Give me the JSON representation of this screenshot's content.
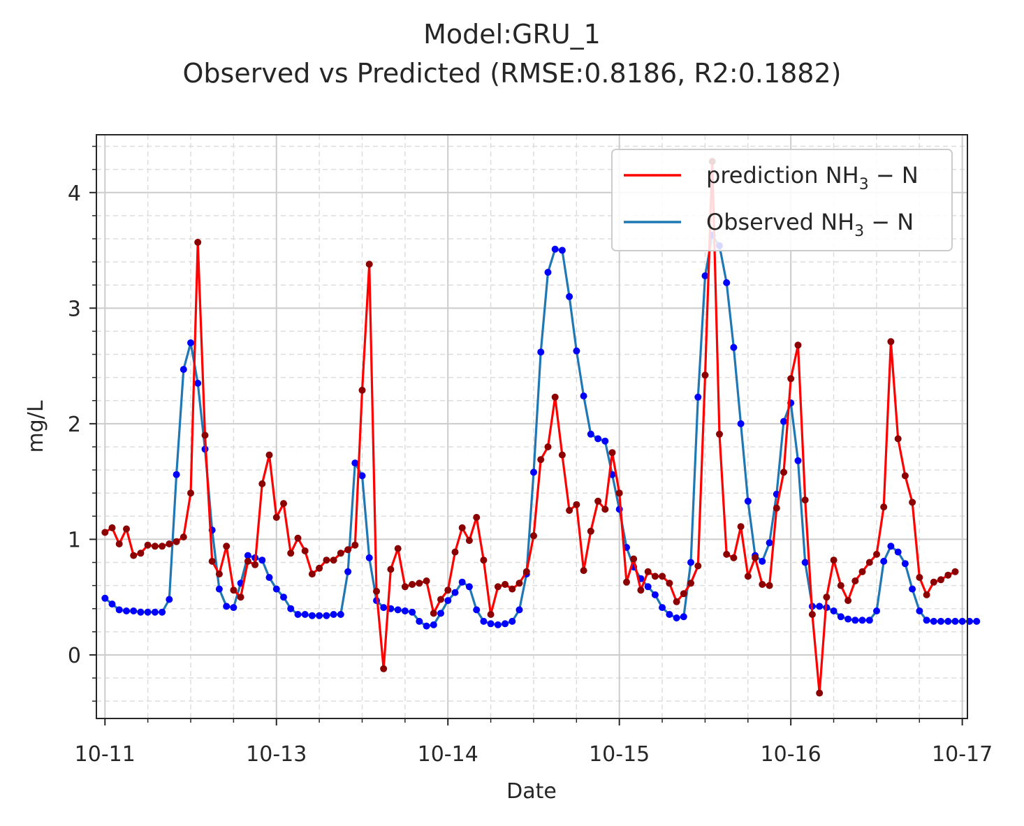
{
  "chart_data": {
    "type": "line",
    "title": "Model:GRU_1",
    "subtitle": "Observed vs Predicted (RMSE:0.8186, R2:0.1882)",
    "xlabel": "Date",
    "ylabel": "mg/L",
    "xlim": [
      -0.05,
      5.03
    ],
    "ylim": [
      -0.55,
      4.5
    ],
    "x_ticks": [
      {
        "value": 0,
        "label": "10-11"
      },
      {
        "value": 1,
        "label": "10-13"
      },
      {
        "value": 2,
        "label": "10-14"
      },
      {
        "value": 3,
        "label": "10-15"
      },
      {
        "value": 4,
        "label": "10-16"
      },
      {
        "value": 5,
        "label": "10-17"
      }
    ],
    "y_ticks": [
      0,
      1,
      2,
      3,
      4
    ],
    "grid": true,
    "legend_position": "top-right",
    "colors": {
      "prediction_line": "#ff0000",
      "prediction_marker": "#8b0000",
      "observed_line": "#1f77b4",
      "observed_marker": "#0000ff"
    },
    "step": 0.04167,
    "series": [
      {
        "name": "prediction",
        "label_main": "prediction NH",
        "label_sub": "3",
        "label_tail": " − N",
        "values": [
          1.06,
          1.1,
          0.96,
          1.09,
          0.86,
          0.88,
          0.95,
          0.94,
          0.94,
          0.96,
          0.98,
          1.02,
          1.4,
          3.57,
          1.9,
          0.81,
          0.7,
          0.94,
          0.56,
          0.5,
          0.81,
          0.78,
          1.48,
          1.73,
          1.19,
          1.31,
          0.88,
          1.01,
          0.9,
          0.7,
          0.75,
          0.82,
          0.82,
          0.88,
          0.91,
          0.95,
          2.29,
          3.38,
          0.55,
          -0.12,
          0.74,
          0.92,
          0.59,
          0.61,
          0.62,
          0.64,
          0.36,
          0.48,
          0.56,
          0.89,
          1.1,
          0.99,
          1.19,
          0.82,
          0.35,
          0.59,
          0.61,
          0.57,
          0.62,
          0.72,
          1.03,
          1.69,
          1.8,
          2.23,
          1.73,
          1.25,
          1.3,
          0.73,
          1.07,
          1.33,
          1.26,
          1.75,
          1.4,
          0.63,
          0.83,
          0.56,
          0.72,
          0.68,
          0.68,
          0.62,
          0.46,
          0.53,
          0.62,
          0.77,
          2.42,
          4.27,
          1.91,
          0.87,
          0.84,
          1.11,
          0.68,
          0.84,
          0.61,
          0.6,
          1.27,
          1.58,
          2.39,
          2.68,
          1.34,
          0.35,
          -0.33,
          0.5,
          0.82,
          0.6,
          0.47,
          0.64,
          0.72,
          0.8,
          0.87,
          1.28,
          2.71,
          1.87,
          1.55,
          1.32,
          0.67,
          0.52,
          0.63,
          0.65,
          0.69,
          0.72
        ]
      },
      {
        "name": "observed",
        "label_main": "Observed NH",
        "label_sub": "3",
        "label_tail": " − N",
        "values": [
          0.49,
          0.44,
          0.39,
          0.38,
          0.38,
          0.37,
          0.37,
          0.37,
          0.37,
          0.48,
          1.56,
          2.47,
          2.7,
          2.35,
          1.78,
          1.08,
          0.57,
          0.42,
          0.41,
          0.62,
          0.86,
          0.84,
          0.82,
          0.67,
          0.57,
          0.5,
          0.4,
          0.35,
          0.35,
          0.34,
          0.34,
          0.34,
          0.35,
          0.35,
          0.72,
          1.66,
          1.55,
          0.84,
          0.47,
          0.41,
          0.4,
          0.39,
          0.38,
          0.37,
          0.29,
          0.25,
          0.26,
          0.36,
          0.47,
          0.54,
          0.63,
          0.59,
          0.39,
          0.29,
          0.27,
          0.26,
          0.27,
          0.29,
          0.39,
          0.7,
          1.58,
          2.62,
          3.31,
          3.51,
          3.5,
          3.1,
          2.63,
          2.24,
          1.91,
          1.87,
          1.85,
          1.56,
          1.26,
          0.93,
          0.76,
          0.66,
          0.59,
          0.52,
          0.41,
          0.35,
          0.32,
          0.33,
          0.8,
          2.23,
          3.28,
          3.63,
          3.54,
          3.22,
          2.66,
          2.0,
          1.33,
          0.86,
          0.81,
          0.97,
          1.39,
          2.02,
          2.18,
          1.68,
          0.8,
          0.42,
          0.42,
          0.41,
          0.38,
          0.33,
          0.31,
          0.3,
          0.3,
          0.3,
          0.38,
          0.81,
          0.94,
          0.89,
          0.79,
          0.57,
          0.38,
          0.3,
          0.29,
          0.29,
          0.29,
          0.29,
          0.29,
          0.29,
          0.29
        ]
      }
    ]
  }
}
